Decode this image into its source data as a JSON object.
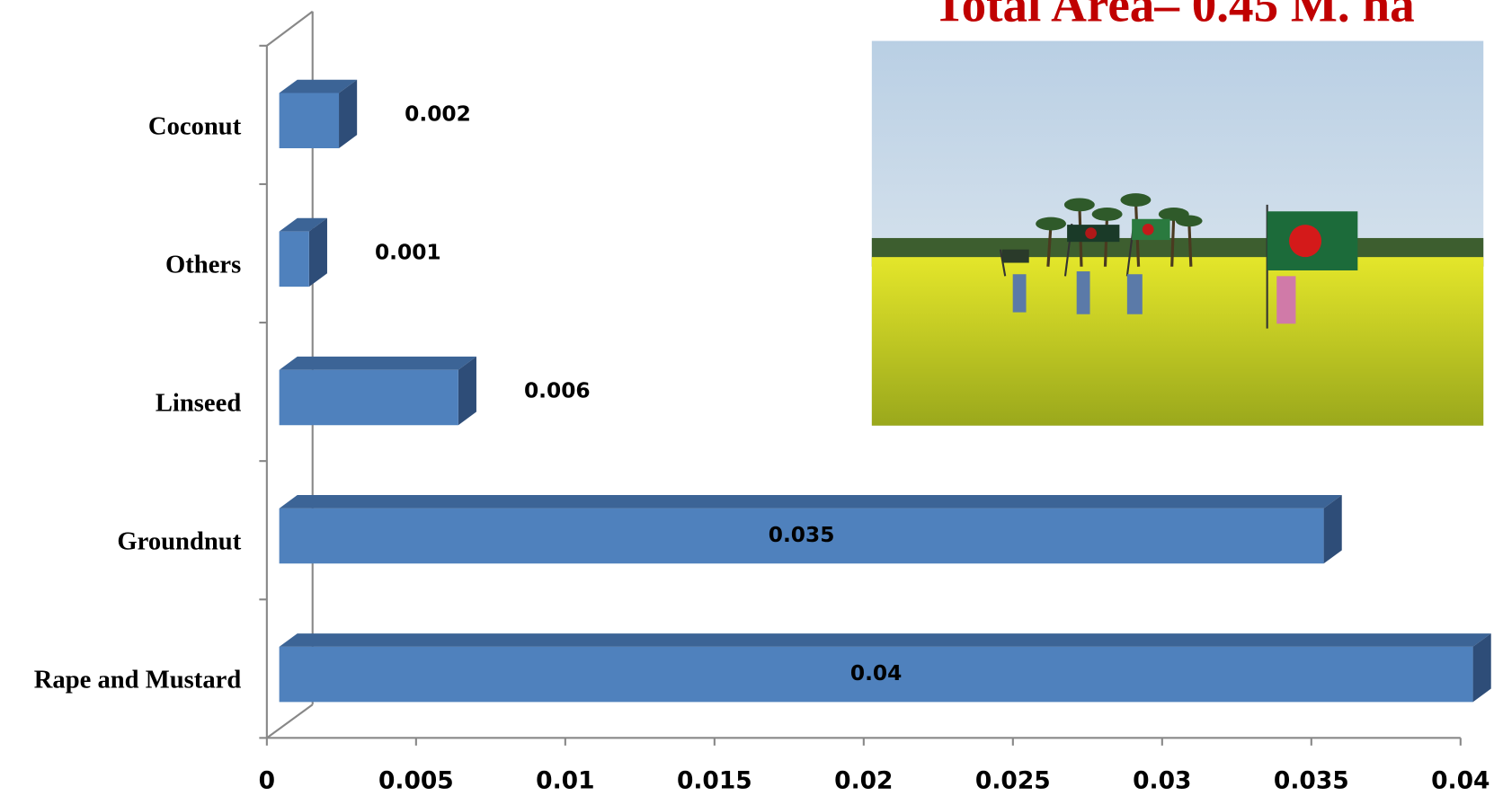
{
  "chart_data": {
    "type": "bar",
    "orientation": "horizontal",
    "title": "Total Area– 0.45 M. ha",
    "categories": [
      "Coconut",
      "Others",
      "Linseed",
      "Groundnut",
      "Rape and Mustard"
    ],
    "values": [
      0.002,
      0.001,
      0.006,
      0.035,
      0.04
    ],
    "color": "#4f81bd",
    "xlim": [
      0,
      0.04
    ],
    "xticks": [
      0,
      0.005,
      0.01,
      0.015,
      0.02,
      0.025,
      0.03,
      0.035,
      0.04
    ],
    "grid": false
  }
}
